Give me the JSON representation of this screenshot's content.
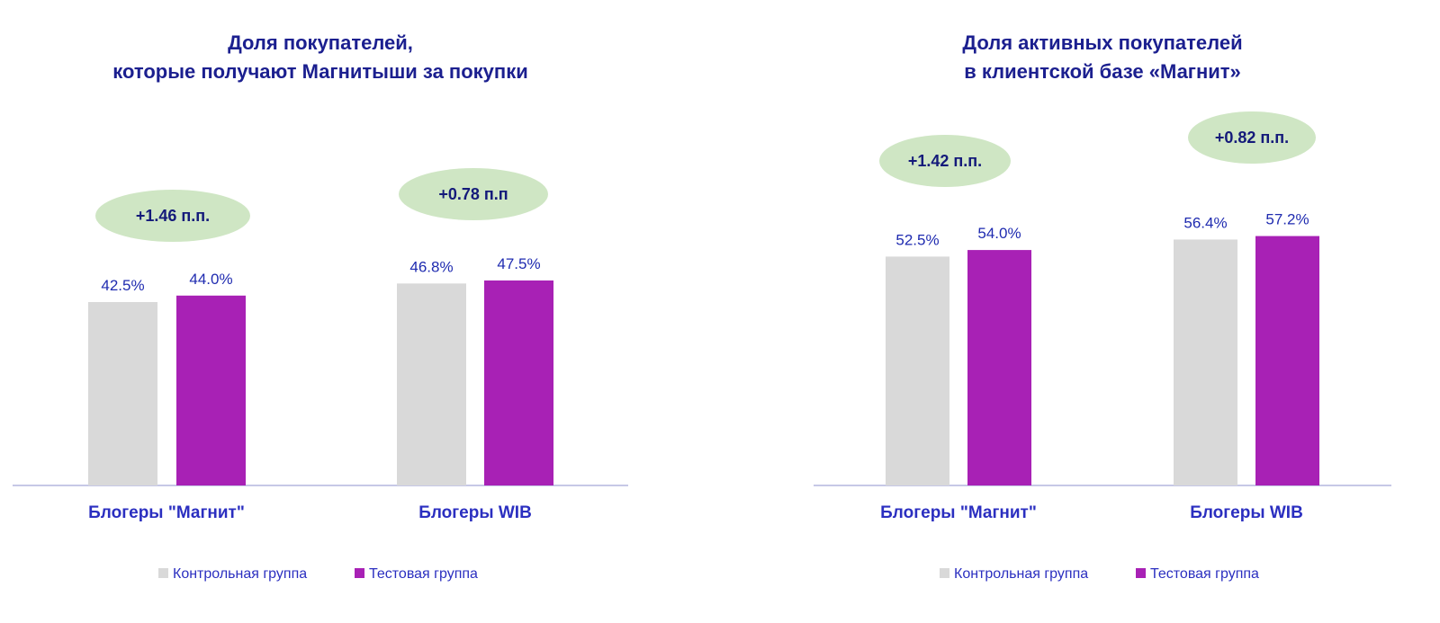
{
  "colors": {
    "control": "#d9d9d9",
    "test": "#a821b5",
    "bubble": "#cfe6c4",
    "title": "#1b1f8f",
    "label": "#2b2fc0",
    "axis": "#b4b6de"
  },
  "chart_data": [
    {
      "type": "bar",
      "title_lines": [
        "Доля покупателей,",
        "которые получают Магнитыши за покупки"
      ],
      "categories": [
        "Блогеры \"Магнит\"",
        "Блогеры WIB"
      ],
      "series": [
        {
          "name": "Контрольная группа",
          "values": [
            42.5,
            46.8
          ],
          "labels": [
            "42.5%",
            "46.8%"
          ]
        },
        {
          "name": "Тестовая группа",
          "values": [
            44.0,
            47.5
          ],
          "labels": [
            "44.0%",
            "47.5%"
          ]
        }
      ],
      "annotations": [
        "+1.46 п.п.",
        "+0.78 п.п"
      ],
      "legend_position": "bottom"
    },
    {
      "type": "bar",
      "title_lines": [
        "Доля активных покупателей",
        "в клиентской базе «Магнит»"
      ],
      "categories": [
        "Блогеры \"Магнит\"",
        "Блогеры WIB"
      ],
      "series": [
        {
          "name": "Контрольная группа",
          "values": [
            52.5,
            56.4
          ],
          "labels": [
            "52.5%",
            "56.4%"
          ]
        },
        {
          "name": "Тестовая группа",
          "values": [
            54.0,
            57.2
          ],
          "labels": [
            "54.0%",
            "57.2%"
          ]
        }
      ],
      "annotations": [
        "+1.42 п.п.",
        "+0.82 п.п."
      ],
      "legend_position": "bottom"
    }
  ]
}
